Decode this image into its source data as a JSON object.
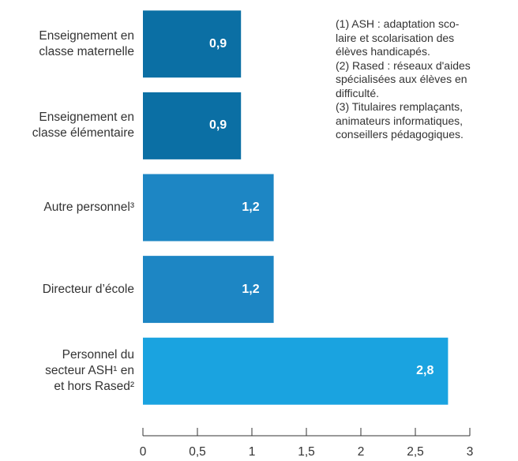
{
  "chart_data": {
    "type": "bar",
    "orientation": "horizontal",
    "categories": [
      "Enseignement en\nclasse maternelle",
      "Enseignement en\nclasse élémentaire",
      "Autre personnel³",
      "Directeur d’école",
      "Personnel du\nsecteur ASH¹ en\net hors Rased²"
    ],
    "values": [
      0.9,
      0.9,
      1.2,
      1.2,
      2.8
    ],
    "value_labels": [
      "0,9",
      "0,9",
      "1,2",
      "1,2",
      "2,8"
    ],
    "colors": [
      "#0b6fa4",
      "#0b6fa4",
      "#1d86c4",
      "#1d86c4",
      "#1aa3e0"
    ],
    "xlim": [
      0,
      3
    ],
    "xticks": [
      0,
      {
        "value": 0.5,
        "label": "0,5"
      },
      1,
      {
        "value": 1.5,
        "label": "1,5"
      },
      2,
      {
        "value": 2.5,
        "label": "2,5"
      },
      3
    ],
    "note": "(1) ASH : adaptation sco-\nlaire et scolarisation des\nélèves handicapés.\n(2) Rased : réseaux d'aides\nspécialisées aux élèves en\ndifficulté.\n(3) Titulaires remplaçants,\nanimateurs informatiques,\nconseillers pédagogiques."
  }
}
